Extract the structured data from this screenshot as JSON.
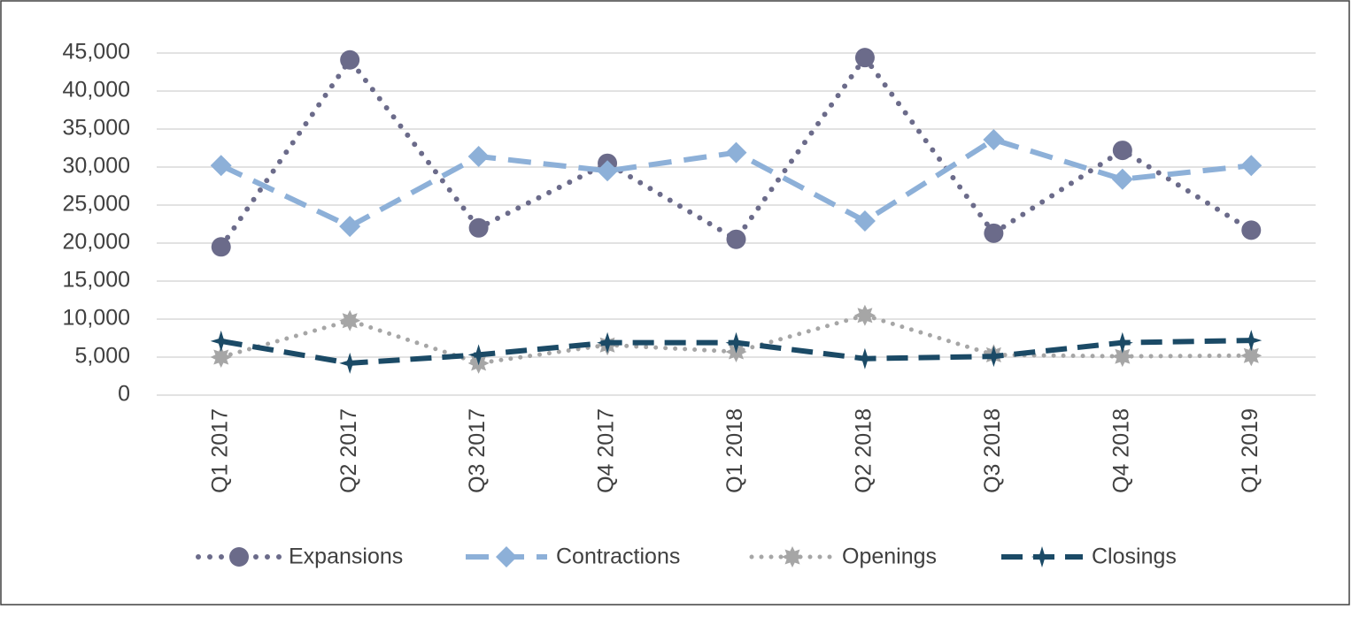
{
  "chart_data": {
    "type": "line",
    "categories": [
      "Q1 2017",
      "Q2 2017",
      "Q3 2017",
      "Q4 2017",
      "Q1 2018",
      "Q2 2018",
      "Q3 2018",
      "Q4 2018",
      "Q1 2019"
    ],
    "series": [
      {
        "name": "Expansions",
        "color": "#6b6b8a",
        "values": [
          19500,
          44100,
          22000,
          30500,
          20500,
          44400,
          21300,
          32200,
          21700
        ]
      },
      {
        "name": "Contractions",
        "color": "#8db0d8",
        "values": [
          30200,
          22200,
          31400,
          29500,
          31900,
          22900,
          33600,
          28400,
          30200
        ]
      },
      {
        "name": "Openings",
        "color": "#a6a6a6",
        "values": [
          5000,
          9800,
          4200,
          6600,
          5700,
          10500,
          5300,
          5100,
          5200
        ]
      },
      {
        "name": "Closings",
        "color": "#1b4a66",
        "values": [
          7100,
          4200,
          5300,
          6900,
          6900,
          4800,
          5100,
          6900,
          7200
        ]
      }
    ],
    "ylim": [
      0,
      45000
    ],
    "yticks": [
      0,
      {
        "value": 5000,
        "label": "5,000"
      },
      {
        "value": 10000,
        "label": "10,000"
      },
      {
        "value": 15000,
        "label": "15,000"
      },
      {
        "value": 20000,
        "label": "20,000"
      },
      {
        "value": 25000,
        "label": "25,000"
      },
      {
        "value": 30000,
        "label": "30,000"
      },
      {
        "value": 35000,
        "label": "35,000"
      },
      {
        "value": 40000,
        "label": "40,000"
      },
      {
        "value": 45000,
        "label": "45,000"
      }
    ],
    "grid": true,
    "legend": "bottom"
  }
}
